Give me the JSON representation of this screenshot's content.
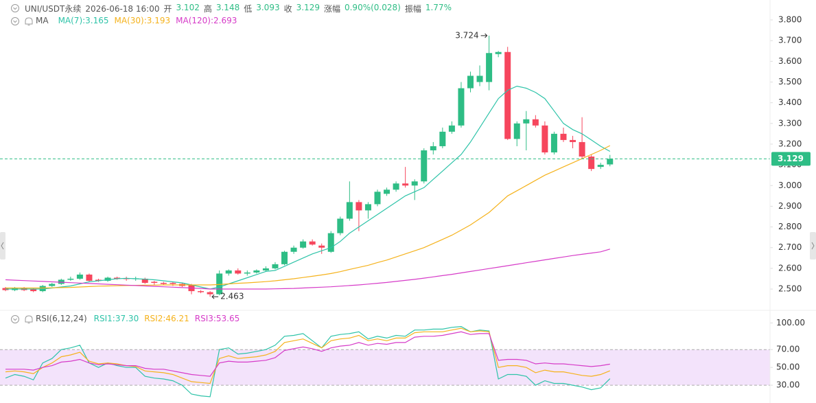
{
  "header": {
    "symbol": "UNI/USDT永续",
    "time": "2026-06-18 16:00",
    "fields": [
      {
        "label": "开",
        "value": "3.102"
      },
      {
        "label": "高",
        "value": "3.148"
      },
      {
        "label": "低",
        "value": "3.093"
      },
      {
        "label": "收",
        "value": "3.129"
      },
      {
        "label": "涨幅",
        "value": "0.90%(0.028)"
      },
      {
        "label": "振幅",
        "value": "1.77%"
      }
    ]
  },
  "chart_data": [
    {
      "type": "candlestick",
      "indicator": "MA",
      "up_color": "#2ebd85",
      "down_color": "#f6465d",
      "open": [
        2.505,
        2.495,
        2.505,
        2.5,
        2.49,
        2.515,
        2.525,
        2.545,
        2.55,
        2.57,
        2.545,
        2.54,
        2.555,
        2.552,
        2.548,
        2.55,
        2.535,
        2.53,
        2.53,
        2.525,
        2.52,
        2.49,
        2.485,
        2.475,
        2.575,
        2.59,
        2.575,
        2.58,
        2.59,
        2.6,
        2.62,
        2.68,
        2.7,
        2.73,
        2.71,
        2.68,
        2.77,
        2.84,
        2.92,
        2.88,
        2.91,
        2.96,
        2.98,
        3.01,
        3.0,
        3.02,
        3.17,
        3.19,
        3.26,
        3.29,
        3.47,
        3.5,
        3.5,
        3.635,
        3.645,
        3.225,
        3.3,
        3.32,
        3.29,
        3.16,
        3.25,
        3.22,
        3.21,
        3.14,
        3.09,
        3.102
      ],
      "high": [
        2.51,
        2.51,
        2.51,
        2.505,
        2.52,
        2.53,
        2.55,
        2.56,
        2.58,
        2.575,
        2.55,
        2.56,
        2.56,
        2.56,
        2.56,
        2.555,
        2.54,
        2.535,
        2.535,
        2.53,
        2.525,
        2.495,
        2.49,
        2.59,
        2.595,
        2.6,
        2.59,
        2.595,
        2.61,
        2.63,
        2.685,
        2.71,
        2.74,
        2.74,
        2.72,
        2.78,
        2.85,
        3.02,
        2.93,
        2.92,
        2.98,
        2.99,
        3.02,
        3.09,
        3.03,
        3.18,
        3.21,
        3.28,
        3.31,
        3.5,
        3.55,
        3.58,
        3.724,
        3.65,
        3.67,
        3.31,
        3.36,
        3.34,
        3.31,
        3.26,
        3.28,
        3.24,
        3.33,
        3.15,
        3.11,
        3.148
      ],
      "low": [
        2.49,
        2.49,
        2.49,
        2.485,
        2.485,
        2.51,
        2.52,
        2.54,
        2.545,
        2.535,
        2.535,
        2.535,
        2.545,
        2.54,
        2.54,
        2.525,
        2.52,
        2.52,
        2.515,
        2.51,
        2.475,
        2.48,
        2.463,
        2.47,
        2.565,
        2.57,
        2.565,
        2.575,
        2.585,
        2.595,
        2.615,
        2.67,
        2.695,
        2.71,
        2.67,
        2.675,
        2.76,
        2.83,
        2.78,
        2.84,
        2.9,
        2.95,
        2.97,
        2.99,
        2.93,
        3.01,
        3.15,
        3.18,
        3.25,
        3.28,
        3.45,
        3.48,
        3.46,
        3.62,
        3.22,
        3.19,
        3.17,
        3.28,
        3.15,
        3.15,
        3.21,
        3.18,
        3.13,
        3.07,
        3.08,
        3.093
      ],
      "close": [
        2.495,
        2.505,
        2.495,
        2.49,
        2.515,
        2.525,
        2.545,
        2.55,
        2.57,
        2.54,
        2.54,
        2.555,
        2.55,
        2.548,
        2.552,
        2.53,
        2.53,
        2.525,
        2.525,
        2.515,
        2.49,
        2.485,
        2.475,
        2.575,
        2.59,
        2.575,
        2.58,
        2.59,
        2.6,
        2.62,
        2.68,
        2.7,
        2.73,
        2.715,
        2.7,
        2.77,
        2.84,
        2.92,
        2.88,
        2.91,
        2.97,
        2.98,
        3.01,
        3.0,
        3.02,
        3.17,
        3.19,
        3.26,
        3.29,
        3.47,
        3.53,
        3.53,
        3.64,
        3.645,
        3.225,
        3.3,
        3.32,
        3.29,
        3.16,
        3.25,
        3.22,
        3.21,
        3.14,
        3.08,
        3.1,
        3.129
      ],
      "series": [
        {
          "name": "MA(7):3.165",
          "color": "#2dc3a8",
          "values": [
            2.5,
            2.5,
            2.5,
            2.5,
            2.5,
            2.505,
            2.51,
            2.515,
            2.525,
            2.535,
            2.54,
            2.545,
            2.55,
            2.552,
            2.55,
            2.548,
            2.545,
            2.54,
            2.535,
            2.53,
            2.52,
            2.51,
            2.5,
            2.51,
            2.525,
            2.54,
            2.555,
            2.57,
            2.585,
            2.59,
            2.61,
            2.63,
            2.65,
            2.67,
            2.685,
            2.7,
            2.73,
            2.77,
            2.8,
            2.83,
            2.86,
            2.89,
            2.92,
            2.95,
            2.97,
            2.99,
            3.03,
            3.07,
            3.11,
            3.15,
            3.21,
            3.28,
            3.35,
            3.42,
            3.46,
            3.48,
            3.47,
            3.45,
            3.42,
            3.36,
            3.3,
            3.27,
            3.25,
            3.22,
            3.19,
            3.165
          ]
        },
        {
          "name": "MA(30):3.193",
          "color": "#f5b21b",
          "values": [
            2.505,
            2.505,
            2.505,
            2.505,
            2.505,
            2.506,
            2.507,
            2.508,
            2.51,
            2.512,
            2.514,
            2.515,
            2.516,
            2.517,
            2.518,
            2.519,
            2.519,
            2.52,
            2.52,
            2.52,
            2.52,
            2.52,
            2.52,
            2.522,
            2.525,
            2.528,
            2.53,
            2.533,
            2.536,
            2.54,
            2.545,
            2.55,
            2.556,
            2.562,
            2.568,
            2.575,
            2.584,
            2.595,
            2.605,
            2.615,
            2.628,
            2.64,
            2.655,
            2.67,
            2.685,
            2.7,
            2.72,
            2.74,
            2.76,
            2.785,
            2.81,
            2.84,
            2.87,
            2.91,
            2.95,
            2.975,
            3.0,
            3.025,
            3.05,
            3.07,
            3.09,
            3.11,
            3.13,
            3.15,
            3.17,
            3.193
          ]
        },
        {
          "name": "MA(120):2.693",
          "color": "#d63bc8",
          "values": [
            2.545,
            2.543,
            2.541,
            2.539,
            2.537,
            2.535,
            2.533,
            2.531,
            2.529,
            2.527,
            2.525,
            2.523,
            2.521,
            2.519,
            2.517,
            2.515,
            2.513,
            2.511,
            2.509,
            2.507,
            2.505,
            2.503,
            2.5,
            2.5,
            2.5,
            2.5,
            2.5,
            2.5,
            2.5,
            2.501,
            2.502,
            2.503,
            2.505,
            2.507,
            2.509,
            2.511,
            2.514,
            2.517,
            2.52,
            2.524,
            2.528,
            2.532,
            2.537,
            2.542,
            2.547,
            2.553,
            2.559,
            2.565,
            2.571,
            2.578,
            2.585,
            2.592,
            2.599,
            2.606,
            2.613,
            2.62,
            2.627,
            2.634,
            2.641,
            2.648,
            2.655,
            2.662,
            2.668,
            2.674,
            2.68,
            2.693
          ]
        }
      ],
      "ylim": [
        2.404,
        3.863
      ],
      "yticks": [
        {
          "value": 2.5,
          "label": "2.500"
        },
        {
          "value": 2.6,
          "label": "2.600"
        },
        {
          "value": 2.7,
          "label": "2.700"
        },
        {
          "value": 2.8,
          "label": "2.800"
        },
        {
          "value": 2.9,
          "label": "2.900"
        },
        {
          "value": 3.0,
          "label": "3.000"
        },
        {
          "value": 3.1,
          "label": "3.100"
        },
        {
          "value": 3.2,
          "label": "3.200"
        },
        {
          "value": 3.3,
          "label": "3.300"
        },
        {
          "value": 3.4,
          "label": "3.400"
        },
        {
          "value": 3.5,
          "label": "3.500"
        },
        {
          "value": 3.6,
          "label": "3.600"
        },
        {
          "value": 3.7,
          "label": "3.700"
        },
        {
          "value": 3.8,
          "label": "3.800"
        }
      ],
      "last_price": 3.129,
      "high_marker": 3.724,
      "low_marker": 2.463
    },
    {
      "type": "line",
      "title": "RSI(6,12,24)",
      "band": [
        30,
        70
      ],
      "band_color": "#f3e3fb",
      "series": [
        {
          "name": "RSI1:37.30",
          "color": "#2dc3a8",
          "values": [
            38,
            42,
            40,
            36,
            55,
            60,
            70,
            72,
            75,
            55,
            50,
            55,
            52,
            50,
            50,
            40,
            38,
            37,
            35,
            30,
            20,
            18,
            17,
            70,
            72,
            65,
            66,
            68,
            70,
            75,
            85,
            86,
            88,
            80,
            72,
            85,
            87,
            88,
            90,
            82,
            85,
            83,
            86,
            85,
            92,
            92,
            93,
            93,
            95,
            96,
            90,
            92,
            91,
            37,
            42,
            42,
            40,
            30,
            35,
            32,
            32,
            30,
            28,
            25,
            27,
            37.3
          ]
        },
        {
          "name": "RSI2:46.21",
          "color": "#f5b21b",
          "values": [
            45,
            46,
            45,
            43,
            50,
            55,
            62,
            64,
            67,
            57,
            54,
            55,
            54,
            52,
            51,
            46,
            45,
            44,
            42,
            38,
            34,
            33,
            32,
            60,
            63,
            60,
            61,
            62,
            64,
            68,
            78,
            80,
            82,
            77,
            72,
            80,
            82,
            83,
            86,
            80,
            82,
            80,
            83,
            83,
            89,
            90,
            90,
            90,
            92,
            94,
            90,
            91,
            90,
            50,
            52,
            52,
            50,
            44,
            47,
            45,
            45,
            43,
            41,
            40,
            42,
            46.21
          ]
        },
        {
          "name": "RSI3:53.65",
          "color": "#d63bc8",
          "values": [
            48,
            48,
            48,
            47,
            50,
            52,
            56,
            57,
            59,
            55,
            53,
            54,
            53,
            52,
            52,
            49,
            48,
            48,
            46,
            44,
            42,
            41,
            40,
            55,
            57,
            56,
            56,
            57,
            58,
            61,
            69,
            71,
            73,
            71,
            68,
            72,
            74,
            75,
            78,
            75,
            77,
            76,
            78,
            78,
            84,
            85,
            85,
            86,
            88,
            90,
            87,
            88,
            88,
            58,
            59,
            59,
            58,
            54,
            55,
            54,
            54,
            53,
            52,
            51,
            52,
            53.65
          ]
        }
      ],
      "ylim": [
        10,
        108
      ],
      "yticks": [
        {
          "value": 100,
          "label": "100.00"
        },
        {
          "value": 70,
          "label": "70.00"
        },
        {
          "value": 50,
          "label": "50.00"
        },
        {
          "value": 30,
          "label": "30.00"
        }
      ]
    }
  ]
}
